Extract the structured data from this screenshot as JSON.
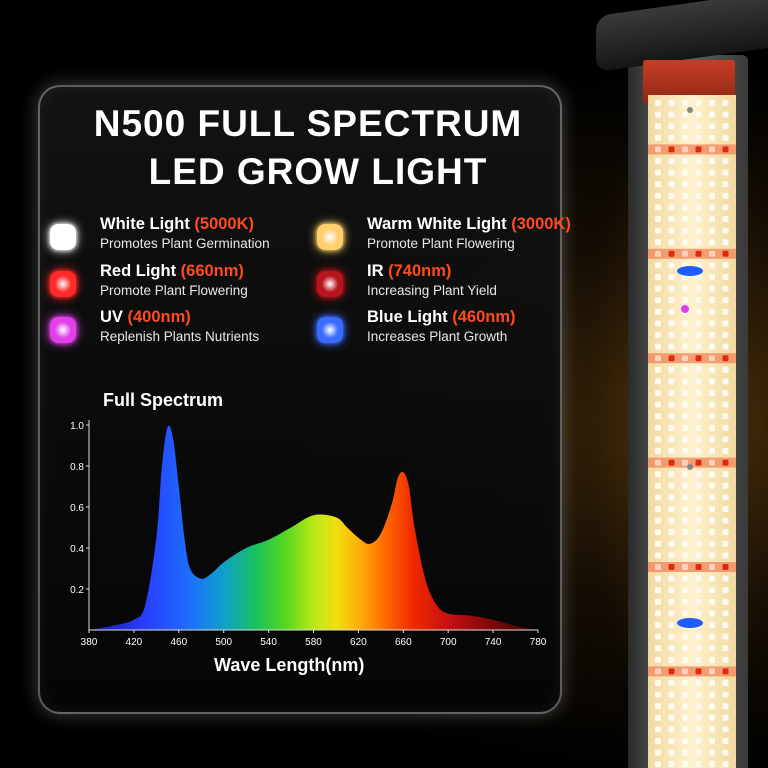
{
  "title": {
    "line1": "N500 FULL SPECTRUM",
    "line2": "LED GROW LIGHT"
  },
  "legend": [
    {
      "name": "White Light ",
      "value": "(5000K)",
      "desc": "Promotes Plant Germination",
      "color": "#ffffff",
      "icon": "white-led-icon"
    },
    {
      "name": "Warm White Light ",
      "value": "(3000K)",
      "desc": "Promote Plant Flowering",
      "color": "#ffcf6e",
      "icon": "warm-white-led-icon"
    },
    {
      "name": "Red Light ",
      "value": "(660nm)",
      "desc": "Promote Plant Flowering",
      "color": "#ff2a2a",
      "icon": "red-led-icon"
    },
    {
      "name": "IR ",
      "value": "(740nm)",
      "desc": "Increasing Plant Yield",
      "color": "#b8141c",
      "icon": "ir-led-icon"
    },
    {
      "name": "UV ",
      "value": "(400nm)",
      "desc": "Replenish Plants Nutrients",
      "color": "#e040e8",
      "icon": "uv-led-icon"
    },
    {
      "name": "Blue Light ",
      "value": "(460nm)",
      "desc": "Increases Plant Growth",
      "color": "#3a6bff",
      "icon": "blue-led-icon"
    }
  ],
  "chart_data": {
    "type": "area",
    "title": "Full Spectrum",
    "xlabel": "Wave Length(nm)",
    "ylabel": "",
    "xlim": [
      380,
      780
    ],
    "ylim": [
      0,
      1.0
    ],
    "x_ticks": [
      380,
      420,
      460,
      500,
      540,
      580,
      620,
      660,
      700,
      740,
      780
    ],
    "y_ticks": [
      0.2,
      0.4,
      0.6,
      0.8,
      1.0
    ],
    "grid": false,
    "series": [
      {
        "x": [
          380,
          400,
          420,
          430,
          440,
          445,
          450,
          455,
          460,
          465,
          470,
          480,
          490,
          500,
          520,
          540,
          560,
          580,
          600,
          610,
          620,
          630,
          640,
          650,
          655,
          660,
          665,
          670,
          680,
          690,
          700,
          720,
          740,
          760,
          780
        ],
        "values": [
          0.0,
          0.02,
          0.05,
          0.12,
          0.45,
          0.8,
          0.99,
          0.93,
          0.7,
          0.45,
          0.3,
          0.25,
          0.28,
          0.33,
          0.4,
          0.44,
          0.5,
          0.56,
          0.55,
          0.5,
          0.45,
          0.42,
          0.47,
          0.62,
          0.74,
          0.77,
          0.7,
          0.5,
          0.24,
          0.12,
          0.08,
          0.07,
          0.05,
          0.02,
          0.0
        ]
      }
    ]
  },
  "colors": {
    "accent": "#ff4a1e",
    "text": "#ffffff"
  }
}
